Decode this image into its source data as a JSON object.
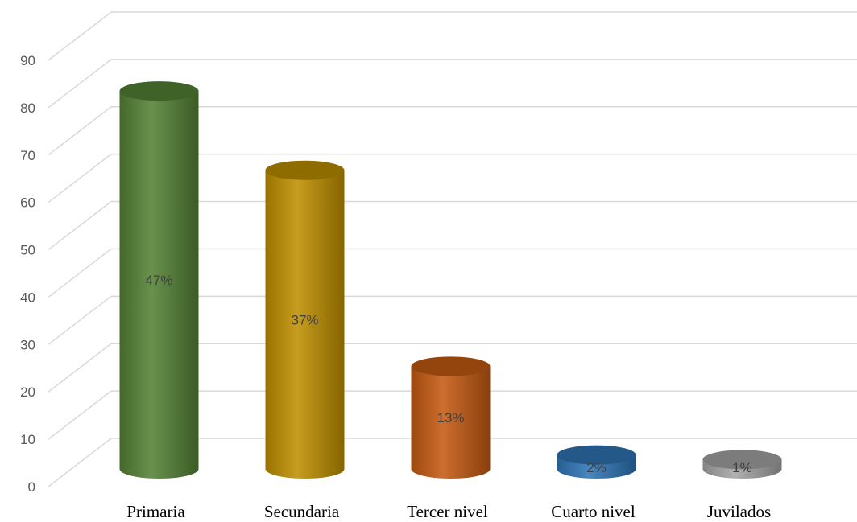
{
  "chart_data": {
    "type": "bar",
    "style": "3d-cylinder",
    "categories": [
      "Primaria",
      "Secundaria",
      "Tercer nivel",
      "Cuarto nivel",
      "Juvilados"
    ],
    "values": [
      81,
      64,
      22,
      3,
      2
    ],
    "data_labels": [
      "47%",
      "37%",
      "13%",
      "2%",
      "1%"
    ],
    "colors": [
      "#548235",
      "#bf9000",
      "#c55a11",
      "#2e75b6",
      "#a5a5a5"
    ],
    "ylim": [
      0,
      90
    ],
    "yticks": [
      0,
      10,
      20,
      30,
      40,
      50,
      60,
      70,
      80,
      90
    ],
    "grid": true,
    "legend": "none",
    "title": "",
    "xlabel": "",
    "ylabel": ""
  }
}
